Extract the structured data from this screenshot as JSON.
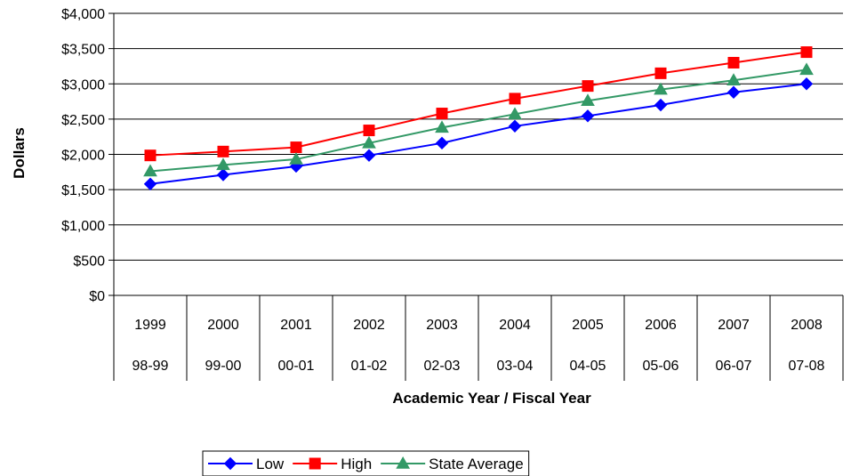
{
  "chart_data": {
    "type": "line",
    "title": "",
    "ylabel": "Dollars",
    "xlabel": "Academic Year / Fiscal Year",
    "categories": [
      "1999",
      "2000",
      "2001",
      "2002",
      "2003",
      "2004",
      "2005",
      "2006",
      "2007",
      "2008"
    ],
    "categories_secondary": [
      "98-99",
      "99-00",
      "00-01",
      "01-02",
      "02-03",
      "03-04",
      "04-05",
      "05-06",
      "06-07",
      "07-08"
    ],
    "ylim": [
      0,
      4000
    ],
    "yticks": [
      0,
      500,
      1000,
      1500,
      2000,
      2500,
      3000,
      3500,
      4000
    ],
    "ytick_labels": [
      "$0",
      "$500",
      "$1,000",
      "$1,500",
      "$2,000",
      "$2,500",
      "$3,000",
      "$3,500",
      "$4,000"
    ],
    "grid": true,
    "legend_position": "bottom",
    "series": [
      {
        "name": "Low",
        "color": "#0000ff",
        "marker": "diamond",
        "values": [
          1580,
          1710,
          1830,
          1985,
          2160,
          2400,
          2545,
          2700,
          2880,
          3000
        ]
      },
      {
        "name": "High",
        "color": "#ff0000",
        "marker": "square",
        "values": [
          1985,
          2040,
          2100,
          2340,
          2580,
          2790,
          2970,
          3150,
          3300,
          3450
        ]
      },
      {
        "name": "State Average",
        "color": "#339966",
        "marker": "triangle",
        "values": [
          1760,
          1850,
          1930,
          2160,
          2380,
          2570,
          2760,
          2920,
          3050,
          3200
        ]
      }
    ]
  }
}
